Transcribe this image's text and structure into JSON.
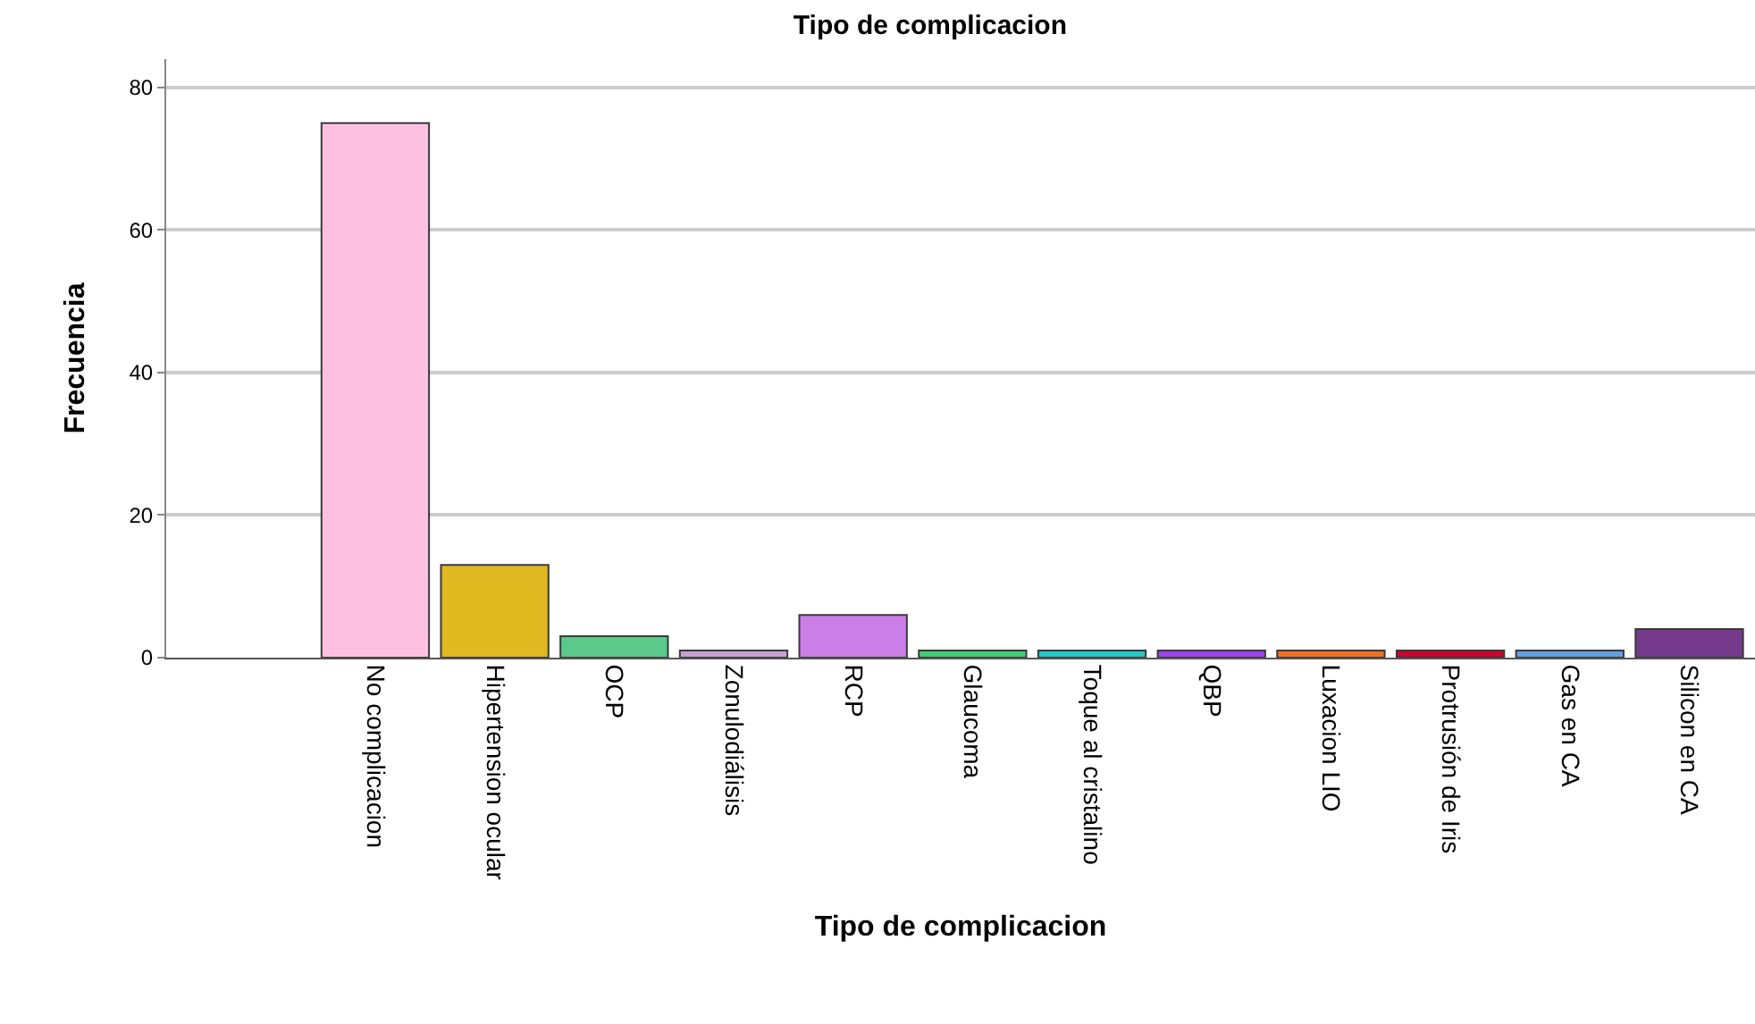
{
  "chart_data": {
    "type": "bar",
    "title": "Tipo de complicacion",
    "xlabel": "Tipo de complicacion",
    "ylabel": "Frecuencia",
    "categories": [
      "No complicacion",
      "Hipertension ocular",
      "OCP",
      "Zonulodiálisis",
      "RCP",
      "Glaucoma",
      "Toque al cristalino",
      "QBP",
      "Luxacion LIO",
      "Protrusión de Iris",
      "Gas en CA",
      "Silicon en CA"
    ],
    "values": [
      75,
      13,
      3,
      1,
      6,
      1,
      1,
      1,
      1,
      1,
      1,
      4
    ],
    "colors": [
      "#fdc0e0",
      "#e0b820",
      "#5ac98a",
      "#c8a0d8",
      "#ca7ee6",
      "#3cd070",
      "#20c8c8",
      "#a040f0",
      "#f07020",
      "#d0002a",
      "#60a0e8",
      "#763a8c"
    ],
    "ylim": [
      0,
      84
    ],
    "yticks": [
      0,
      20,
      40,
      60,
      80
    ],
    "grid": "y",
    "legend": false
  }
}
